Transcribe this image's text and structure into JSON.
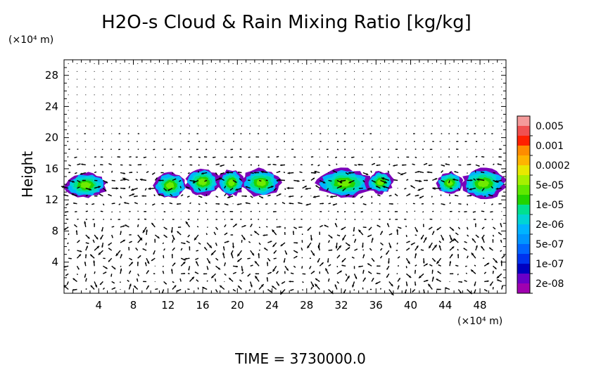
{
  "chart_data": {
    "type": "heatmap",
    "title": "H2O-s Cloud & Rain Mixing Ratio [kg/kg]",
    "ylabel": "Height",
    "y_unit_label": "(×10⁴ m)",
    "x_unit_label": "(×10⁴ m)",
    "footer": "TIME  =  3730000.0",
    "xlim": [
      0,
      51
    ],
    "ylim": [
      0,
      30
    ],
    "xticks": [
      "4",
      "8",
      "12",
      "16",
      "20",
      "24",
      "28",
      "32",
      "36",
      "40",
      "44",
      "48"
    ],
    "yticks": [
      "4",
      "8",
      "12",
      "16",
      "20",
      "24",
      "28"
    ],
    "xtick_values": [
      4,
      8,
      12,
      16,
      20,
      24,
      28,
      32,
      36,
      40,
      44,
      48
    ],
    "ytick_values": [
      4,
      8,
      12,
      16,
      20,
      24,
      28
    ],
    "colorbar": {
      "labels": [
        "0.005",
        "0.001",
        "0.0002",
        "5e-05",
        "1e-05",
        "2e-06",
        "5e-07",
        "1e-07",
        "2e-08"
      ],
      "colors_top_to_bottom": [
        "#f49a9a",
        "#f05050",
        "#ff2000",
        "#ff8c00",
        "#ffb400",
        "#e8e800",
        "#a6f000",
        "#60e800",
        "#22d400",
        "#00e090",
        "#00d4d4",
        "#00b4ff",
        "#0096ff",
        "#0066ff",
        "#0033ee",
        "#0000c0",
        "#6a00c8",
        "#a000b0"
      ]
    },
    "cloud_regions": [
      {
        "x0": 0.0,
        "x1": 5.0,
        "y0": 12.3,
        "y1": 15.5
      },
      {
        "x0": 10.3,
        "x1": 14.2,
        "y0": 12.2,
        "y1": 15.5
      },
      {
        "x0": 14.0,
        "x1": 18.0,
        "y0": 12.6,
        "y1": 16.0
      },
      {
        "x0": 17.8,
        "x1": 20.8,
        "y0": 12.5,
        "y1": 15.9
      },
      {
        "x0": 20.5,
        "x1": 25.0,
        "y0": 12.4,
        "y1": 16.0
      },
      {
        "x0": 29.2,
        "x1": 35.5,
        "y0": 12.3,
        "y1": 16.0
      },
      {
        "x0": 35.0,
        "x1": 38.0,
        "y0": 12.8,
        "y1": 15.7
      },
      {
        "x0": 43.0,
        "x1": 46.0,
        "y0": 12.7,
        "y1": 15.6
      },
      {
        "x0": 45.8,
        "x1": 51.0,
        "y0": 12.2,
        "y1": 16.0
      }
    ]
  }
}
